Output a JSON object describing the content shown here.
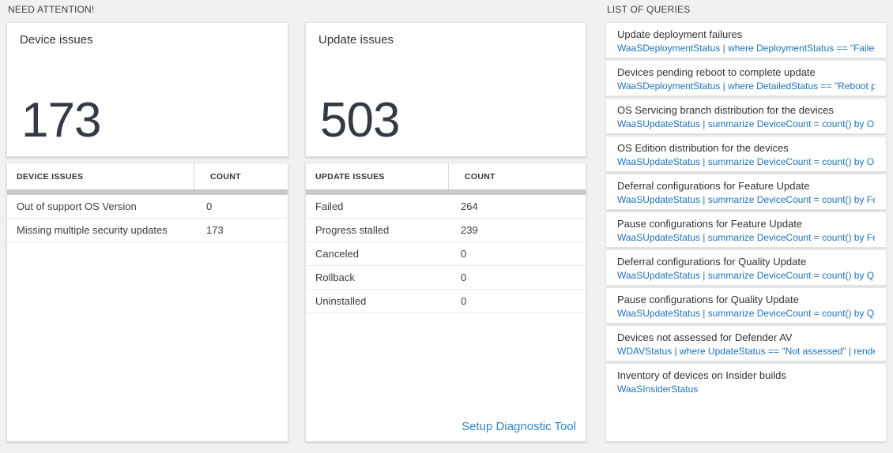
{
  "need_attention": {
    "label": "NEED ATTENTION!",
    "device_card": {
      "title": "Device issues",
      "count": "173",
      "table": {
        "headers": [
          "DEVICE ISSUES",
          "COUNT"
        ],
        "rows": [
          {
            "issue": "Out of support OS Version",
            "count": "0"
          },
          {
            "issue": "Missing multiple security updates",
            "count": "173"
          }
        ]
      }
    },
    "update_card": {
      "title": "Update issues",
      "count": "503",
      "table": {
        "headers": [
          "UPDATE ISSUES",
          "COUNT"
        ],
        "rows": [
          {
            "issue": "Failed",
            "count": "264"
          },
          {
            "issue": "Progress stalled",
            "count": "239"
          },
          {
            "issue": "Canceled",
            "count": "0"
          },
          {
            "issue": "Rollback",
            "count": "0"
          },
          {
            "issue": "Uninstalled",
            "count": "0"
          }
        ]
      },
      "footer_link": "Setup Diagnostic Tool"
    }
  },
  "queries": {
    "label": "LIST OF QUERIES",
    "items": [
      {
        "title": "Update deployment failures",
        "query": "WaaSDeploymentStatus | where DeploymentStatus == \"Failed\" |..."
      },
      {
        "title": "Devices pending reboot to complete update",
        "query": "WaaSDeploymentStatus | where DetailedStatus == \"Reboot pend..."
      },
      {
        "title": "OS Servicing branch distribution for the devices",
        "query": "WaaSUpdateStatus | summarize DeviceCount = count() by OSSer..."
      },
      {
        "title": "OS Edition distribution for the devices",
        "query": "WaaSUpdateStatus | summarize DeviceCount = count() by OSEdit..."
      },
      {
        "title": "Deferral configurations for Feature Update",
        "query": "WaaSUpdateStatus | summarize DeviceCount = count() by Featur..."
      },
      {
        "title": "Pause configurations for Feature Update",
        "query": "WaaSUpdateStatus | summarize DeviceCount = count() by Featur..."
      },
      {
        "title": "Deferral configurations for Quality Update",
        "query": "WaaSUpdateStatus | summarize DeviceCount = count() by Qualit..."
      },
      {
        "title": "Pause configurations for Quality Update",
        "query": "WaaSUpdateStatus | summarize DeviceCount = count() by Qualit..."
      },
      {
        "title": "Devices not assessed for Defender AV",
        "query": "WDAVStatus | where UpdateStatus == \"Not assessed\" | render ta..."
      },
      {
        "title": "Inventory of devices on Insider builds",
        "query": "WaaSInsiderStatus"
      }
    ]
  },
  "colors": {
    "background": "#f1f1f0",
    "big_number": "#333a45",
    "query_link_blue": "#1b73c0",
    "setup_link_blue": "#2e86cb",
    "header_bar_gray": "#c9c9c9"
  }
}
